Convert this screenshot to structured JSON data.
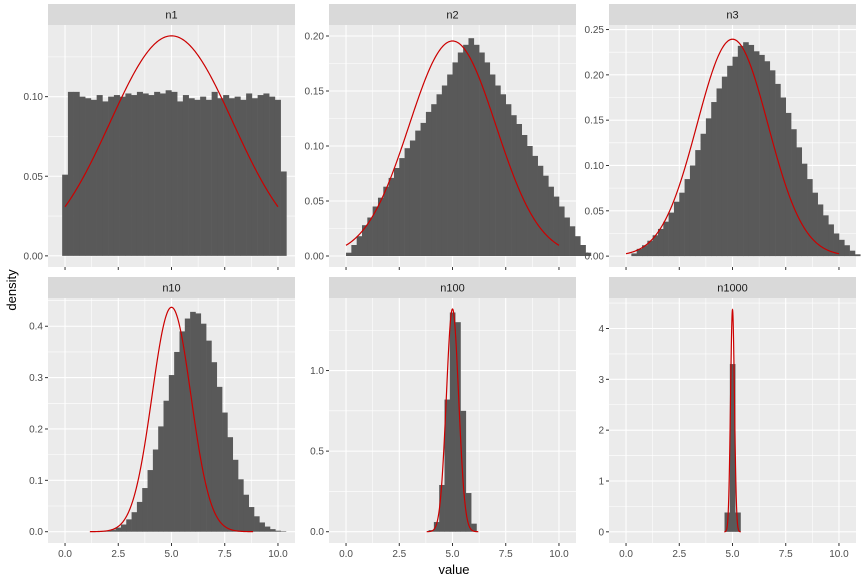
{
  "figure": {
    "xlabel": "value",
    "ylabel": "density"
  },
  "colors": {
    "panel_bg": "#EBEBEB",
    "grid": "#FFFFFF",
    "strip_bg": "#D9D9D9",
    "bar": "#595959",
    "curve": "#CC0000",
    "tick_text": "#4D4D4D",
    "strip_text": "#1A1A1A"
  },
  "chart_data": [
    {
      "type": "histogram",
      "title": "n1",
      "xlim": [
        -0.8,
        10.8
      ],
      "ylim": [
        -0.007,
        0.145
      ],
      "xticks": [
        0,
        2.5,
        5,
        7.5,
        10
      ],
      "xtick_labels": [
        "0.0",
        "2.5",
        "5.0",
        "7.5",
        "10.0"
      ],
      "yticks": [
        0,
        0.05,
        0.1
      ],
      "ytick_labels": [
        "0.00",
        "0.05",
        "0.10"
      ],
      "bin_start": -0.135,
      "bin_width": 0.27,
      "bar_values": [
        0.051,
        0.103,
        0.103,
        0.1,
        0.099,
        0.098,
        0.101,
        0.097,
        0.1,
        0.101,
        0.1,
        0.102,
        0.101,
        0.103,
        0.102,
        0.101,
        0.103,
        0.102,
        0.104,
        0.103,
        0.097,
        0.101,
        0.099,
        0.098,
        0.1,
        0.098,
        0.103,
        0.099,
        0.101,
        0.099,
        0.1,
        0.098,
        0.102,
        0.099,
        0.101,
        0.102,
        0.1,
        0.098,
        0.053
      ],
      "curve": {
        "mean": 5.0,
        "sd": 2.887
      }
    },
    {
      "type": "histogram",
      "title": "n2",
      "xlim": [
        -0.8,
        10.8
      ],
      "ylim": [
        -0.01,
        0.21
      ],
      "xticks": [
        0,
        2.5,
        5,
        7.5,
        10
      ],
      "xtick_labels": [
        "0.0",
        "2.5",
        "5.0",
        "7.5",
        "10.0"
      ],
      "yticks": [
        0,
        0.05,
        0.1,
        0.15,
        0.2
      ],
      "ytick_labels": [
        "0.00",
        "0.05",
        "0.10",
        "0.15",
        "0.20"
      ],
      "bin_start": 0.0,
      "bin_width": 0.25,
      "bar_values": [
        0.003,
        0.01,
        0.018,
        0.028,
        0.035,
        0.045,
        0.053,
        0.063,
        0.071,
        0.08,
        0.089,
        0.098,
        0.105,
        0.114,
        0.121,
        0.131,
        0.138,
        0.147,
        0.155,
        0.165,
        0.176,
        0.185,
        0.192,
        0.198,
        0.192,
        0.185,
        0.176,
        0.165,
        0.155,
        0.147,
        0.138,
        0.128,
        0.12,
        0.11,
        0.1,
        0.091,
        0.082,
        0.073,
        0.063,
        0.054,
        0.045,
        0.035,
        0.027,
        0.018,
        0.01,
        0.003
      ],
      "curve": {
        "mean": 5.0,
        "sd": 2.041
      }
    },
    {
      "type": "histogram",
      "title": "n3",
      "xlim": [
        -0.8,
        10.8
      ],
      "ylim": [
        -0.012,
        0.255
      ],
      "xticks": [
        0,
        2.5,
        5,
        7.5,
        10
      ],
      "xtick_labels": [
        "0.0",
        "2.5",
        "5.0",
        "7.5",
        "10.0"
      ],
      "yticks": [
        0,
        0.05,
        0.1,
        0.15,
        0.2,
        0.25
      ],
      "ytick_labels": [
        "0.00",
        "0.05",
        "0.10",
        "0.15",
        "0.20",
        "0.25"
      ],
      "bin_start": 0.25,
      "bin_width": 0.25,
      "bar_values": [
        0.003,
        0.008,
        0.012,
        0.017,
        0.023,
        0.03,
        0.038,
        0.048,
        0.06,
        0.07,
        0.085,
        0.1,
        0.117,
        0.135,
        0.152,
        0.17,
        0.185,
        0.198,
        0.21,
        0.22,
        0.232,
        0.236,
        0.233,
        0.226,
        0.222,
        0.215,
        0.205,
        0.19,
        0.175,
        0.158,
        0.14,
        0.12,
        0.102,
        0.085,
        0.07,
        0.057,
        0.045,
        0.035,
        0.025,
        0.018,
        0.012,
        0.006,
        0.002
      ],
      "curve": {
        "mean": 5.0,
        "sd": 1.667
      }
    },
    {
      "type": "histogram",
      "title": "n10",
      "xlim": [
        -0.8,
        10.8
      ],
      "ylim": [
        -0.022,
        0.455
      ],
      "xticks": [
        0,
        2.5,
        5,
        7.5,
        10
      ],
      "xtick_labels": [
        "0.0",
        "2.5",
        "5.0",
        "7.5",
        "10.0"
      ],
      "yticks": [
        0,
        0.1,
        0.2,
        0.3,
        0.4
      ],
      "ytick_labels": [
        "0.0",
        "0.1",
        "0.2",
        "0.3",
        "0.4"
      ],
      "bin_start": 1.625,
      "bin_width": 0.25,
      "bar_values": [
        0.001,
        0.002,
        0.004,
        0.008,
        0.014,
        0.024,
        0.038,
        0.058,
        0.085,
        0.12,
        0.16,
        0.205,
        0.255,
        0.305,
        0.35,
        0.39,
        0.415,
        0.428,
        0.425,
        0.405,
        0.372,
        0.33,
        0.282,
        0.232,
        0.184,
        0.14,
        0.102,
        0.072,
        0.048,
        0.03,
        0.018,
        0.01,
        0.005,
        0.002,
        0.001
      ],
      "curve": {
        "mean": 5.0,
        "sd": 0.913
      }
    },
    {
      "type": "histogram",
      "title": "n100",
      "xlim": [
        -0.8,
        10.8
      ],
      "ylim": [
        -0.07,
        1.45
      ],
      "xticks": [
        0,
        2.5,
        5,
        7.5,
        10
      ],
      "xtick_labels": [
        "0.0",
        "2.5",
        "5.0",
        "7.5",
        "10.0"
      ],
      "yticks": [
        0,
        0.5,
        1.0
      ],
      "ytick_labels": [
        "0.0",
        "0.5",
        "1.0"
      ],
      "bin_start": 3.875,
      "bin_width": 0.25,
      "bar_values": [
        0.01,
        0.06,
        0.29,
        0.82,
        1.36,
        1.3,
        0.75,
        0.24,
        0.05
      ],
      "curve": {
        "mean": 5.0,
        "sd": 0.2887
      }
    },
    {
      "type": "histogram",
      "title": "n1000",
      "xlim": [
        -0.8,
        10.8
      ],
      "ylim": [
        -0.22,
        4.6
      ],
      "xticks": [
        0,
        2.5,
        5,
        7.5,
        10
      ],
      "xtick_labels": [
        "0.0",
        "2.5",
        "5.0",
        "7.5",
        "10.0"
      ],
      "yticks": [
        0,
        1,
        2,
        3,
        4
      ],
      "ytick_labels": [
        "0",
        "1",
        "2",
        "3",
        "4"
      ],
      "bin_start": 4.625,
      "bin_width": 0.25,
      "bar_values": [
        0.38,
        3.3,
        0.38
      ],
      "curve": {
        "mean": 5.0,
        "sd": 0.0913
      }
    }
  ]
}
